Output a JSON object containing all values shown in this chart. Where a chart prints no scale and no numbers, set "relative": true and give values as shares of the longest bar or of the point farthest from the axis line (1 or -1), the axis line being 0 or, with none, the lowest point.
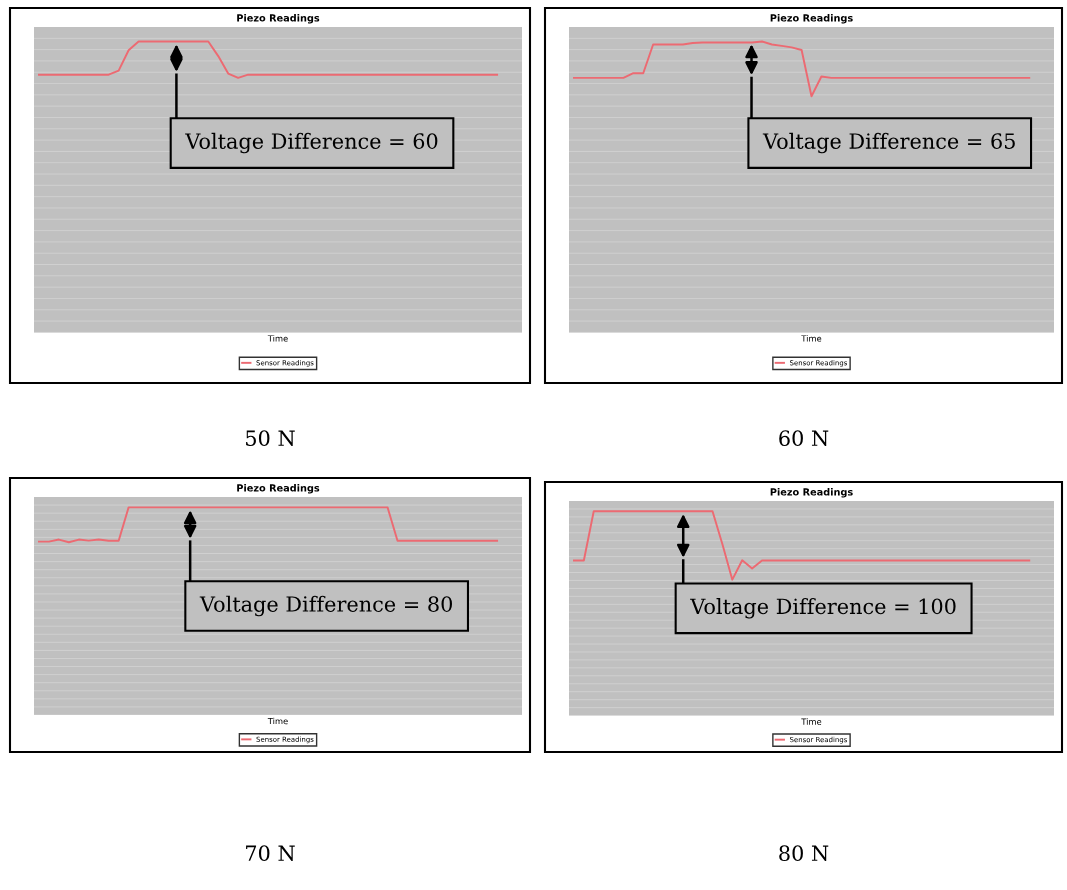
{
  "chart_data": [
    {
      "type": "line",
      "title": "Piezo Readings",
      "xlabel": "Time",
      "relative": true,
      "grid": "y",
      "legend": "bottom",
      "tick_labels": false,
      "marker": "none",
      "line_style": "solid",
      "categories": [
        null,
        null,
        null,
        null,
        null,
        null,
        null,
        null,
        null,
        null,
        null,
        null,
        null,
        null,
        null,
        null,
        null,
        null,
        null,
        null,
        null,
        null,
        null,
        null,
        null,
        null,
        null,
        null,
        null,
        null,
        null,
        null,
        null,
        null,
        null,
        null,
        null,
        null,
        null,
        null,
        null,
        null,
        null,
        null,
        null,
        null,
        null
      ],
      "series": [
        {
          "name": "Sensor Readings",
          "color": "#ec6a72",
          "values": [
            0.886,
            0.886,
            0.886,
            0.886,
            0.886,
            0.886,
            0.886,
            0.886,
            0.9,
            0.97,
            1,
            1,
            1,
            1,
            1,
            1,
            1,
            1,
            0.95,
            0.89,
            0.875,
            0.886,
            0.886,
            0.886,
            0.886,
            0.886,
            0.886,
            0.886,
            0.886,
            0.886,
            0.886,
            0.886,
            0.886,
            0.886,
            0.886,
            0.886,
            0.886,
            0.886,
            0.886,
            0.886,
            0.886,
            0.886,
            0.886,
            0.886,
            0.886,
            0.886,
            0.886
          ]
        }
      ],
      "annotations": [
        "Voltage Difference = 60",
        "50 N"
      ]
    },
    {
      "type": "line",
      "title": "Piezo Readings",
      "xlabel": "Time",
      "relative": true,
      "grid": "y",
      "legend": "bottom",
      "tick_labels": false,
      "marker": "none",
      "line_style": "solid",
      "categories": [
        null,
        null,
        null,
        null,
        null,
        null,
        null,
        null,
        null,
        null,
        null,
        null,
        null,
        null,
        null,
        null,
        null,
        null,
        null,
        null,
        null,
        null,
        null,
        null,
        null,
        null,
        null,
        null,
        null,
        null,
        null,
        null,
        null,
        null,
        null,
        null,
        null,
        null,
        null,
        null,
        null,
        null,
        null,
        null,
        null,
        null,
        null
      ],
      "series": [
        {
          "name": "Sensor Readings",
          "color": "#ec6a72",
          "values": [
            0.875,
            0.875,
            0.875,
            0.875,
            0.875,
            0.875,
            0.891,
            0.891,
            0.99,
            0.99,
            0.99,
            0.99,
            0.995,
            0.997,
            0.997,
            0.997,
            0.997,
            0.997,
            0.997,
            1,
            0.99,
            0.985,
            0.98,
            0.971,
            0.812,
            0.88,
            0.875,
            0.875,
            0.875,
            0.875,
            0.875,
            0.875,
            0.875,
            0.875,
            0.875,
            0.875,
            0.875,
            0.875,
            0.875,
            0.875,
            0.875,
            0.875,
            0.875,
            0.875,
            0.875,
            0.875,
            0.875
          ]
        }
      ],
      "annotations": [
        "Voltage Difference = 65",
        "60 N"
      ]
    },
    {
      "type": "line",
      "title": "Piezo Readings",
      "xlabel": "Time",
      "relative": true,
      "grid": "y",
      "legend": "bottom",
      "tick_labels": false,
      "marker": "none",
      "line_style": "solid",
      "categories": [
        null,
        null,
        null,
        null,
        null,
        null,
        null,
        null,
        null,
        null,
        null,
        null,
        null,
        null,
        null,
        null,
        null,
        null,
        null,
        null,
        null,
        null,
        null,
        null,
        null,
        null,
        null,
        null,
        null,
        null,
        null,
        null,
        null,
        null,
        null,
        null,
        null,
        null,
        null,
        null,
        null,
        null,
        null,
        null,
        null,
        null,
        null
      ],
      "series": [
        {
          "name": "Sensor Readings",
          "color": "#ec6a72",
          "values": [
            0.835,
            0.835,
            0.845,
            0.832,
            0.845,
            0.84,
            0.845,
            0.839,
            0.839,
            1,
            1,
            1,
            1,
            1,
            1,
            1,
            1,
            1,
            1,
            1,
            1,
            1,
            1,
            1,
            1,
            1,
            1,
            1,
            1,
            1,
            1,
            1,
            1,
            1,
            1,
            1,
            0.839,
            0.839,
            0.839,
            0.839,
            0.839,
            0.839,
            0.839,
            0.839,
            0.839,
            0.839,
            0.839
          ]
        }
      ],
      "annotations": [
        "Voltage Difference = 80",
        "70 N"
      ]
    },
    {
      "type": "line",
      "title": "Piezo Readings",
      "xlabel": "Time",
      "relative": true,
      "grid": "y",
      "legend": "bottom",
      "tick_labels": false,
      "marker": "none",
      "line_style": "solid",
      "categories": [
        null,
        null,
        null,
        null,
        null,
        null,
        null,
        null,
        null,
        null,
        null,
        null,
        null,
        null,
        null,
        null,
        null,
        null,
        null,
        null,
        null,
        null,
        null,
        null,
        null,
        null,
        null,
        null,
        null,
        null,
        null,
        null,
        null,
        null,
        null,
        null,
        null,
        null,
        null,
        null,
        null,
        null,
        null,
        null,
        null,
        null,
        null
      ],
      "series": [
        {
          "name": "Sensor Readings",
          "color": "#ec6a72",
          "values": [
            0.759,
            0.759,
            1,
            1,
            1,
            1,
            1,
            1,
            1,
            1,
            1,
            1,
            1,
            1,
            1,
            0.838,
            0.665,
            0.76,
            0.72,
            0.759,
            0.759,
            0.759,
            0.759,
            0.759,
            0.759,
            0.759,
            0.759,
            0.759,
            0.759,
            0.759,
            0.759,
            0.759,
            0.759,
            0.759,
            0.759,
            0.759,
            0.759,
            0.759,
            0.759,
            0.759,
            0.759,
            0.759,
            0.759,
            0.759,
            0.759,
            0.759,
            0.759
          ]
        }
      ],
      "annotations": [
        "Voltage Difference = 100",
        "80 N"
      ]
    }
  ]
}
